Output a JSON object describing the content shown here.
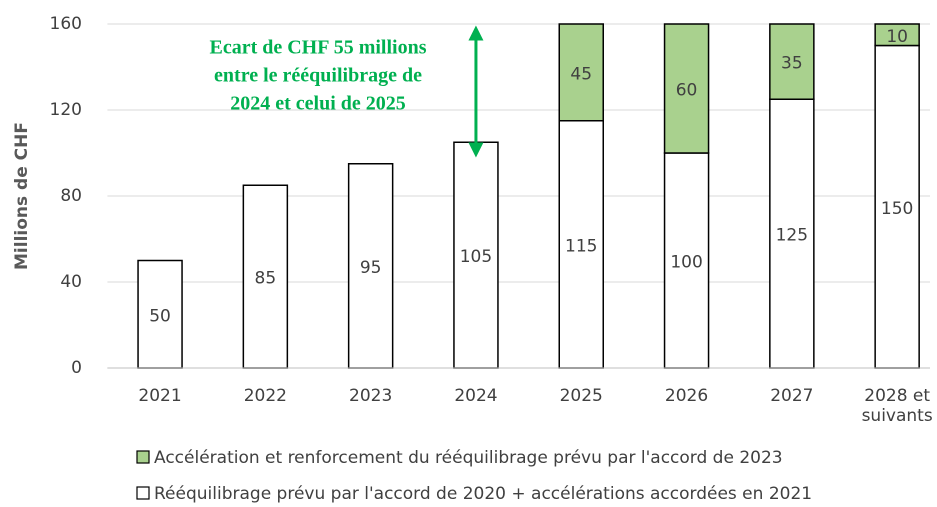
{
  "chart_data": {
    "type": "stacked_bar",
    "y_label": "Millions de CHF",
    "categories": [
      "2021",
      "2022",
      "2023",
      "2024",
      "2025",
      "2026",
      "2027",
      "2028 et\nsuivants"
    ],
    "series": [
      {
        "name": "Rééquilibrage prévu par l'accord de 2020 + accélérations accordées en 2021",
        "color": "#ffffff",
        "values": [
          50,
          85,
          95,
          105,
          115,
          100,
          125,
          150
        ]
      },
      {
        "name": "Accélération et renforcement du rééquilibrage prévu par l'accord de 2023",
        "color": "#a9d18e",
        "values": [
          null,
          null,
          null,
          null,
          45,
          60,
          35,
          10
        ]
      }
    ],
    "annotation": [
      "Ecart de CHF 55 millions",
      "entre le rééquilibrage de",
      "2024 et celui de 2025"
    ],
    "ylim": [
      0,
      160
    ],
    "yticks": [
      0,
      40,
      80,
      120,
      160
    ],
    "grid": true
  }
}
